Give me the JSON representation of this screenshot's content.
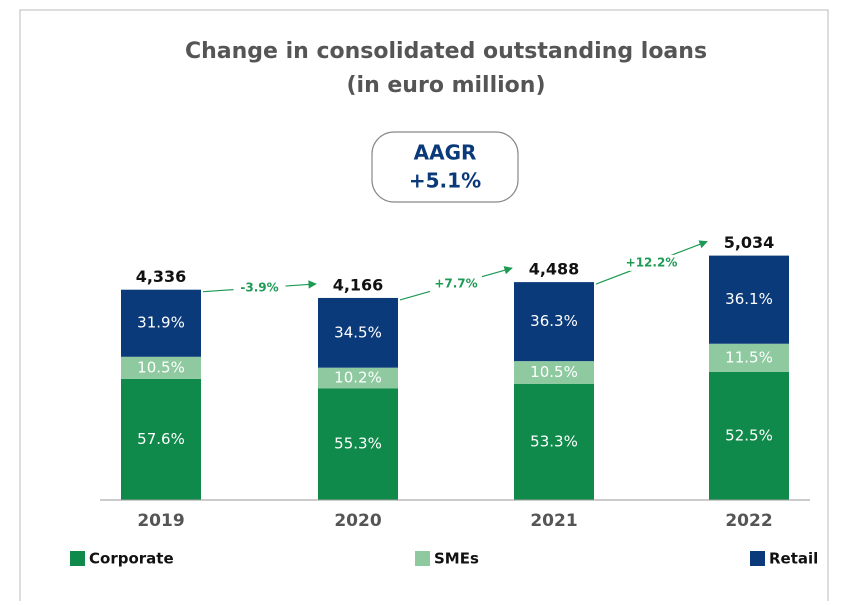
{
  "chart_data": {
    "type": "stacked_bar",
    "title": "Change in consolidated outstanding loans",
    "subtitle": "(in euro million)",
    "callout": {
      "label": "AAGR",
      "value": 5.1,
      "value_label": "+5.1%"
    },
    "categories": [
      "2019",
      "2020",
      "2021",
      "2022"
    ],
    "totals": {
      "values": [
        4336,
        4166,
        4488,
        5034
      ],
      "value_labels": [
        "4,336",
        "4,166",
        "4,488",
        "5,034"
      ]
    },
    "growth": {
      "values": [
        -3.9,
        7.7,
        12.2
      ],
      "value_labels": [
        "-3.9%",
        "+7.7%",
        "+12.2%"
      ],
      "color": "#1e9a55"
    },
    "series": [
      {
        "name": "Corporate",
        "color": "#0f8a4a",
        "values": [
          57.6,
          55.3,
          53.3,
          52.5
        ],
        "value_labels": [
          "57.6%",
          "55.3%",
          "53.3%",
          "52.5%"
        ]
      },
      {
        "name": "SMEs",
        "color": "#8ec99f",
        "values": [
          10.5,
          10.2,
          10.5,
          11.5
        ],
        "value_labels": [
          "10.5%",
          "10.2%",
          "10.5%",
          "11.5%"
        ]
      },
      {
        "name": "Retail",
        "color": "#0b3a7a",
        "values": [
          31.9,
          34.5,
          36.3,
          36.1
        ],
        "value_labels": [
          "31.9%",
          "34.5%",
          "36.3%",
          "36.1%"
        ]
      }
    ]
  }
}
